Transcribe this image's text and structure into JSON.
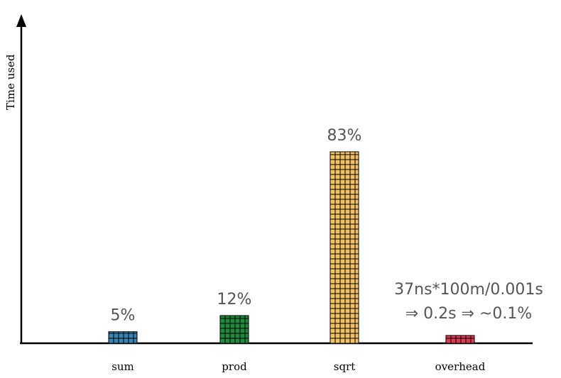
{
  "chart_data": {
    "type": "bar",
    "ylabel": "Time used",
    "xlabel": "",
    "categories": [
      "sum",
      "prod",
      "sqrt",
      "overhead"
    ],
    "values": [
      5,
      12,
      83,
      0.1
    ],
    "data_labels": [
      "5%",
      "12%",
      "83%",
      ""
    ],
    "colors": [
      "#3a84b4",
      "#1f8a3e",
      "#f2c166",
      "#dc3a52"
    ],
    "annotation": {
      "line1": "37ns*100m/0.001s",
      "line2": "⇒ 0.2s ⇒ ~0.1%"
    },
    "grid": false
  }
}
